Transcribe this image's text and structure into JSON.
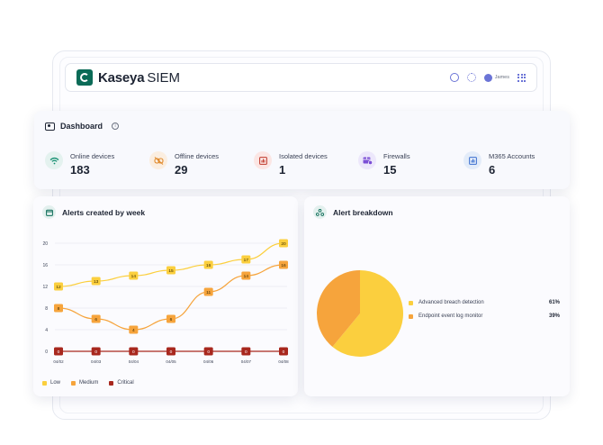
{
  "header": {
    "brand_name": "Kaseya",
    "brand_product": "SIEM",
    "user_name": "James"
  },
  "colors": {
    "low": "#fbcf3e",
    "medium": "#f6a43c",
    "critical": "#a8281e",
    "accent": "#0b6b57"
  },
  "dashboard": {
    "title": "Dashboard",
    "stats": [
      {
        "label": "Online devices",
        "value": "183",
        "icon": "wifi-icon"
      },
      {
        "label": "Offline devices",
        "value": "29",
        "icon": "link-off-icon"
      },
      {
        "label": "Isolated devices",
        "value": "1",
        "icon": "isolated-chart-icon"
      },
      {
        "label": "Firewalls",
        "value": "15",
        "icon": "firewall-icon"
      },
      {
        "label": "M365 Accounts",
        "value": "6",
        "icon": "accounts-chart-icon"
      }
    ]
  },
  "alerts_panel": {
    "title": "Alert breakdown"
  },
  "weekly_panel": {
    "title": "Alerts created by week"
  },
  "chart_data": [
    {
      "type": "line",
      "title": "Alerts created by week",
      "x": [
        "04/02",
        "04/03",
        "04/04",
        "04/05",
        "04/06",
        "04/07",
        "04/08"
      ],
      "yticks": [
        0,
        4,
        8,
        12,
        16,
        20
      ],
      "ylim": [
        0,
        21
      ],
      "grid": true,
      "legend_placement": "bottom-left",
      "series": [
        {
          "name": "Low",
          "values": [
            12,
            13,
            14,
            15,
            16,
            17,
            20
          ]
        },
        {
          "name": "Medium",
          "values": [
            8,
            6,
            4,
            6,
            11,
            14,
            16
          ]
        },
        {
          "name": "Critical",
          "values": [
            0,
            0,
            0,
            0,
            0,
            0,
            0
          ]
        }
      ]
    },
    {
      "type": "pie",
      "title": "Alert breakdown",
      "legend_placement": "right",
      "slices": [
        {
          "name": "Advanced breach detection",
          "value": 61,
          "label": "61%"
        },
        {
          "name": "Endpoint event log monitor",
          "value": 39,
          "label": "39%"
        }
      ]
    }
  ]
}
